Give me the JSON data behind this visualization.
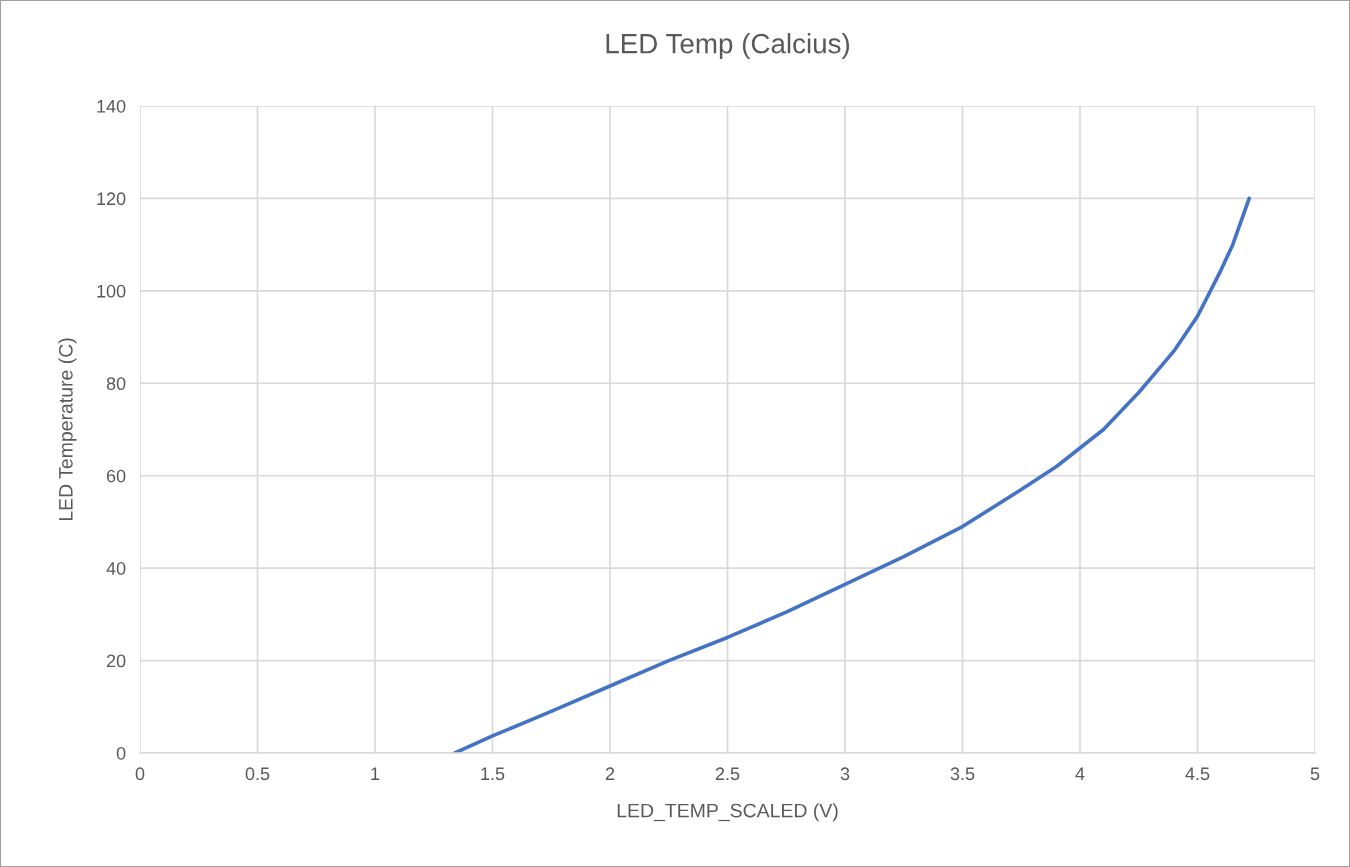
{
  "chart_data": {
    "type": "line",
    "title": "LED Temp (Calcius)",
    "xlabel": "LED_TEMP_SCALED (V)",
    "ylabel": "LED Temperature (C)",
    "series": [
      {
        "color": "#4472c4",
        "x": [
          1.34,
          1.5,
          1.75,
          2,
          2.25,
          2.5,
          2.75,
          3,
          3.25,
          3.5,
          3.75,
          3.9,
          4,
          4.1,
          4.25,
          4.35,
          4.4,
          4.5,
          4.6,
          4.65,
          4.72
        ],
        "values": [
          0,
          3.7,
          9,
          14.5,
          20,
          25,
          30.5,
          36.5,
          42.5,
          49,
          57,
          62,
          66,
          70,
          78,
          84,
          87,
          94.5,
          104.5,
          110,
          120
        ]
      }
    ],
    "xlim": [
      0,
      5
    ],
    "xticks": [
      0,
      0.5,
      1,
      1.5,
      2,
      2.5,
      3,
      3.5,
      4,
      4.5,
      5
    ],
    "ylim": [
      0,
      140
    ],
    "yticks": [
      0,
      20,
      40,
      60,
      80,
      100,
      120,
      140
    ],
    "grid": true,
    "marker": "none",
    "line_style": "solid",
    "legend": false
  }
}
